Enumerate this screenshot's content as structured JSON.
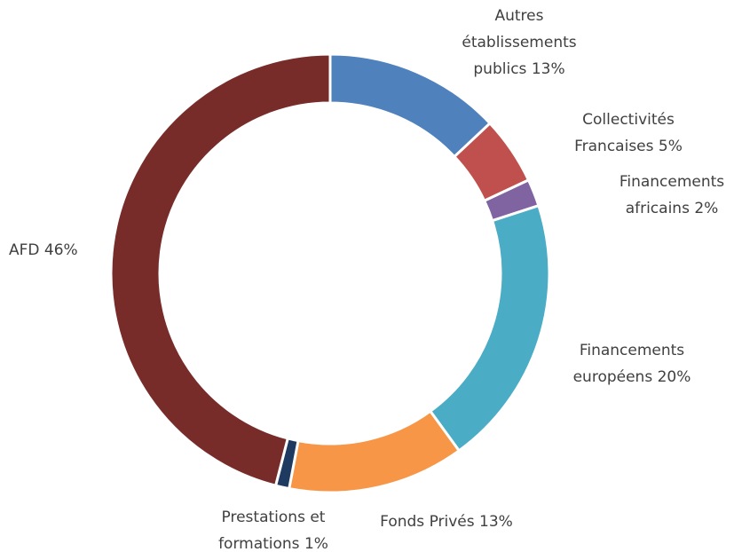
{
  "chart_data": {
    "type": "donut",
    "categories": [
      "Autres établissements publics",
      "Collectivités Francaises",
      "Financements africains",
      "Financements européens",
      "Fonds Privés",
      "Prestations et formations",
      "AFD"
    ],
    "values": [
      13,
      5,
      2,
      20,
      13,
      1,
      46
    ],
    "value_labels": [
      "13%",
      "5%",
      "2%",
      "20%",
      "13%",
      "1%",
      "46%"
    ],
    "colors": [
      "#4f81bd",
      "#c0504d",
      "#8064a2",
      "#4bacc6",
      "#f79646",
      "#1f3a60",
      "#772c2a"
    ]
  }
}
